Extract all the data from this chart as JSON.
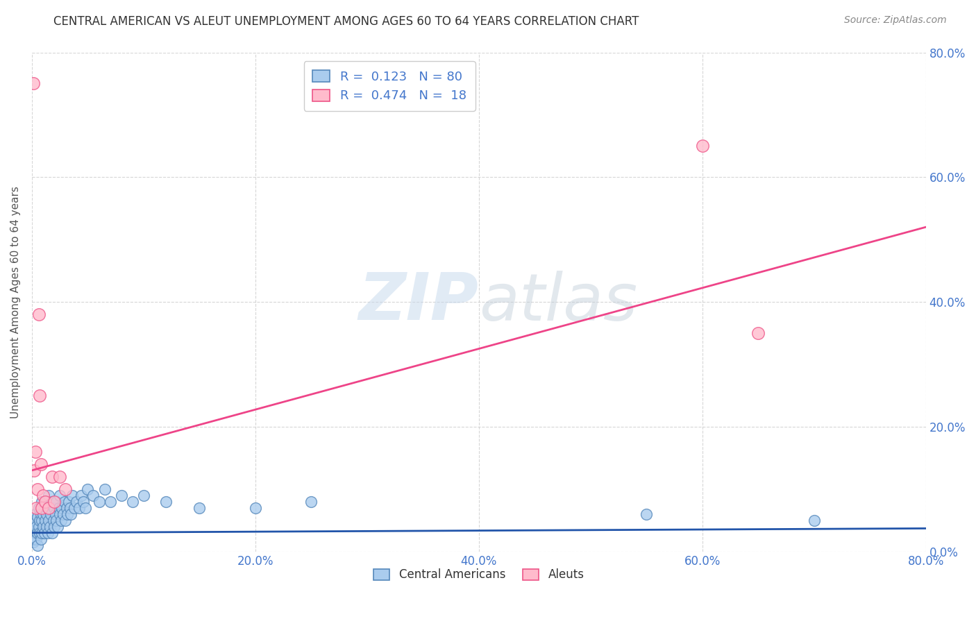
{
  "title": "CENTRAL AMERICAN VS ALEUT UNEMPLOYMENT AMONG AGES 60 TO 64 YEARS CORRELATION CHART",
  "source": "Source: ZipAtlas.com",
  "ylabel": "Unemployment Among Ages 60 to 64 years",
  "xlim": [
    0.0,
    0.8
  ],
  "ylim": [
    0.0,
    0.8
  ],
  "xticks": [
    0.0,
    0.2,
    0.4,
    0.6,
    0.8
  ],
  "yticks": [
    0.0,
    0.2,
    0.4,
    0.6,
    0.8
  ],
  "xtick_labels": [
    "0.0%",
    "20.0%",
    "40.0%",
    "60.0%",
    "80.0%"
  ],
  "ytick_labels": [
    "0.0%",
    "20.0%",
    "40.0%",
    "60.0%",
    "80.0%"
  ],
  "grid_color": "#cccccc",
  "background_color": "#ffffff",
  "watermark_zip": "ZIP",
  "watermark_atlas": "atlas",
  "blue_color": "#5588bb",
  "pink_color": "#ee5588",
  "blue_face": "#aaccee",
  "pink_face": "#ffbbcc",
  "R_blue": 0.123,
  "N_blue": 80,
  "R_pink": 0.474,
  "N_pink": 18,
  "legend_label_blue": "Central Americans",
  "legend_label_pink": "Aleuts",
  "blue_points_x": [
    0.0,
    0.0,
    0.001,
    0.001,
    0.002,
    0.002,
    0.003,
    0.003,
    0.004,
    0.004,
    0.005,
    0.005,
    0.005,
    0.006,
    0.006,
    0.007,
    0.007,
    0.008,
    0.008,
    0.009,
    0.009,
    0.009,
    0.01,
    0.01,
    0.011,
    0.011,
    0.012,
    0.012,
    0.013,
    0.013,
    0.014,
    0.014,
    0.015,
    0.015,
    0.016,
    0.016,
    0.017,
    0.018,
    0.018,
    0.019,
    0.02,
    0.02,
    0.021,
    0.022,
    0.022,
    0.023,
    0.024,
    0.025,
    0.025,
    0.026,
    0.027,
    0.028,
    0.029,
    0.03,
    0.031,
    0.032,
    0.033,
    0.034,
    0.035,
    0.036,
    0.038,
    0.04,
    0.042,
    0.044,
    0.046,
    0.048,
    0.05,
    0.055,
    0.06,
    0.065,
    0.07,
    0.08,
    0.09,
    0.1,
    0.12,
    0.15,
    0.2,
    0.25,
    0.55,
    0.7
  ],
  "blue_points_y": [
    0.02,
    0.03,
    0.015,
    0.04,
    0.02,
    0.05,
    0.03,
    0.06,
    0.02,
    0.04,
    0.01,
    0.03,
    0.055,
    0.04,
    0.07,
    0.03,
    0.05,
    0.02,
    0.06,
    0.03,
    0.05,
    0.08,
    0.04,
    0.06,
    0.03,
    0.07,
    0.05,
    0.08,
    0.04,
    0.06,
    0.03,
    0.07,
    0.05,
    0.09,
    0.04,
    0.07,
    0.06,
    0.03,
    0.08,
    0.05,
    0.04,
    0.07,
    0.06,
    0.05,
    0.08,
    0.04,
    0.07,
    0.06,
    0.09,
    0.05,
    0.07,
    0.06,
    0.08,
    0.05,
    0.07,
    0.06,
    0.08,
    0.07,
    0.06,
    0.09,
    0.07,
    0.08,
    0.07,
    0.09,
    0.08,
    0.07,
    0.1,
    0.09,
    0.08,
    0.1,
    0.08,
    0.09,
    0.08,
    0.09,
    0.08,
    0.07,
    0.07,
    0.08,
    0.06,
    0.05
  ],
  "pink_points_x": [
    0.001,
    0.002,
    0.003,
    0.004,
    0.005,
    0.006,
    0.007,
    0.008,
    0.009,
    0.01,
    0.012,
    0.015,
    0.018,
    0.02,
    0.025,
    0.03,
    0.6,
    0.65
  ],
  "pink_points_y": [
    0.75,
    0.13,
    0.16,
    0.07,
    0.1,
    0.38,
    0.25,
    0.14,
    0.07,
    0.09,
    0.08,
    0.07,
    0.12,
    0.08,
    0.12,
    0.1,
    0.65,
    0.35
  ],
  "blue_line_x": [
    0.0,
    0.8
  ],
  "blue_line_y": [
    0.03,
    0.037
  ],
  "pink_line_x": [
    0.0,
    0.8
  ],
  "pink_line_y": [
    0.13,
    0.52
  ]
}
